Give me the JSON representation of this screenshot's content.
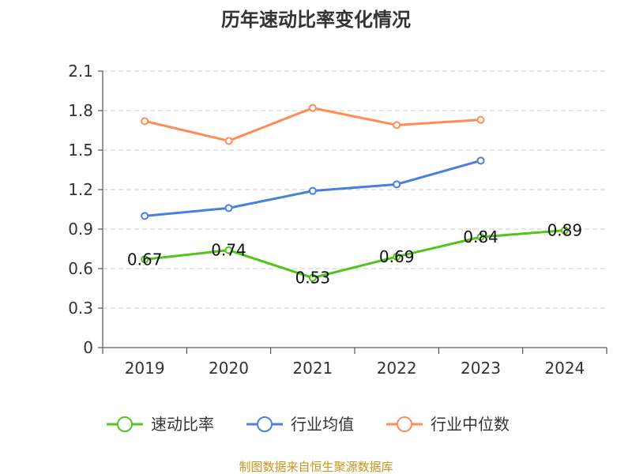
{
  "chart_data": {
    "type": "line",
    "title": "历年速动比率变化情况",
    "categories": [
      "2019",
      "2020",
      "2021",
      "2022",
      "2023",
      "2024"
    ],
    "ylim": [
      0,
      2.1
    ],
    "yticks": [
      "0",
      "0.3",
      "0.6",
      "0.9",
      "1.2",
      "1.5",
      "1.8",
      "2.1"
    ],
    "grid": true,
    "legend_position": "bottom",
    "series": [
      {
        "name": "速动比率",
        "color": "#52c41a",
        "values": [
          0.67,
          0.74,
          0.53,
          0.69,
          0.84,
          0.89
        ],
        "labels": [
          "0.67",
          "0.74",
          "0.53",
          "0.69",
          "0.84",
          "0.89"
        ]
      },
      {
        "name": "行业均值",
        "color": "#4a7fe0",
        "values": [
          1.0,
          1.06,
          1.19,
          1.24,
          1.42,
          null
        ]
      },
      {
        "name": "行业中位数",
        "color": "#ff8c55",
        "values": [
          1.72,
          1.57,
          1.82,
          1.69,
          1.73,
          null
        ]
      }
    ],
    "source": "制图数据来自恒生聚源数据库"
  }
}
